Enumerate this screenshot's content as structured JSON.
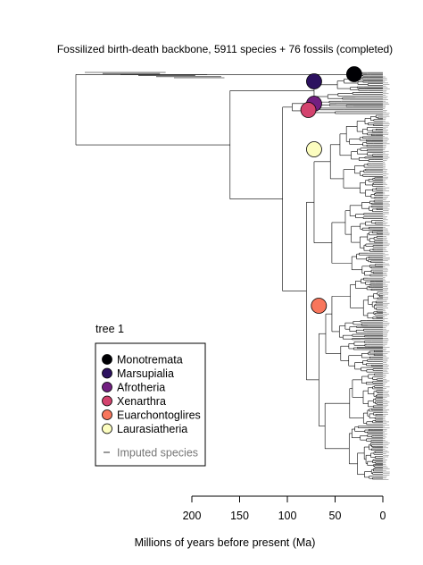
{
  "chart_data": {
    "type": "phylogenetic-tree",
    "title": "Fossilized birth-death backbone, 5911 species + 76 fossils (completed)",
    "xlabel": "Millions of years before present (Ma)",
    "xlim": [
      200,
      0
    ],
    "x_ticks": [
      "200",
      "150",
      "100",
      "50",
      "0"
    ],
    "x_tick_values": [
      200,
      150,
      100,
      50,
      0
    ],
    "tree_label": "tree 1",
    "clades": [
      {
        "name": "Monotremata",
        "color": "#000004",
        "age_ma": 30
      },
      {
        "name": "Marsupialia",
        "color": "#2c115f",
        "age_ma": 72
      },
      {
        "name": "Afrotheria",
        "color": "#721f81",
        "age_ma": 72
      },
      {
        "name": "Xenarthra",
        "color": "#d3436e",
        "age_ma": 78
      },
      {
        "name": "Euarchontoglires",
        "color": "#f8765c",
        "age_ma": 67
      },
      {
        "name": "Laurasiatheria",
        "color": "#fcfdbf",
        "age_ma": 72
      }
    ],
    "legend_extra": "Imputed species",
    "legend_extra_color": "#999999",
    "root_age_ma": 320
  }
}
